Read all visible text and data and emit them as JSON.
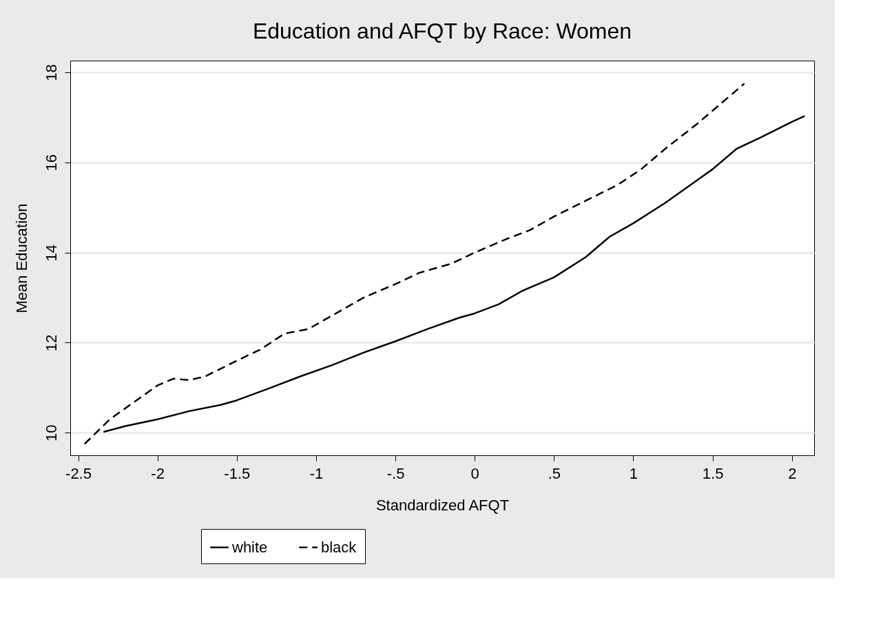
{
  "chart_data": {
    "type": "line",
    "title": "Education and AFQT by Race: Women",
    "xlabel": "Standardized AFQT",
    "ylabel": "Mean Education",
    "xlim": [
      -2.55,
      2.14
    ],
    "ylim": [
      9.5,
      18.26
    ],
    "xticks": [
      -2.5,
      -2,
      -1.5,
      -1,
      {
        "value": -0.5,
        "label": "-.5"
      },
      0,
      {
        "value": 0.5,
        "label": ".5"
      },
      1,
      1.5,
      2
    ],
    "yticks": [
      10,
      12,
      14,
      16,
      18
    ],
    "grid": "y",
    "legend": "bottom",
    "marker": "none",
    "series": [
      {
        "name": "white",
        "color": "#000000",
        "line_style": "solid",
        "x": [
          -2.34,
          -2.2,
          -2,
          -1.8,
          -1.6,
          -1.5,
          -1.3,
          -1.1,
          -0.9,
          -0.7,
          -0.5,
          -0.3,
          -0.1,
          0,
          0.15,
          0.3,
          0.5,
          0.7,
          0.85,
          1,
          1.2,
          1.4,
          1.5,
          1.65,
          1.8,
          2,
          2.08
        ],
        "values": [
          10.02,
          10.15,
          10.3,
          10.48,
          10.62,
          10.72,
          10.98,
          11.25,
          11.5,
          11.78,
          12.03,
          12.3,
          12.55,
          12.65,
          12.85,
          13.15,
          13.45,
          13.9,
          14.35,
          14.65,
          15.1,
          15.6,
          15.85,
          16.3,
          16.55,
          16.9,
          17.03
        ]
      },
      {
        "name": "black",
        "color": "#000000",
        "line_style": "dashed",
        "x": [
          -2.46,
          -2.3,
          -2.1,
          -2,
          -1.9,
          -1.8,
          -1.7,
          -1.5,
          -1.35,
          -1.2,
          -1.05,
          -0.9,
          -0.7,
          -0.5,
          -0.35,
          -0.15,
          0,
          0.2,
          0.35,
          0.5,
          0.7,
          0.9,
          1.05,
          1.2,
          1.4,
          1.55,
          1.7
        ],
        "values": [
          9.75,
          10.3,
          10.8,
          11.05,
          11.2,
          11.17,
          11.25,
          11.6,
          11.85,
          12.2,
          12.3,
          12.6,
          13.0,
          13.3,
          13.55,
          13.75,
          14.0,
          14.3,
          14.5,
          14.8,
          15.15,
          15.5,
          15.85,
          16.3,
          16.85,
          17.3,
          17.75
        ]
      }
    ]
  }
}
